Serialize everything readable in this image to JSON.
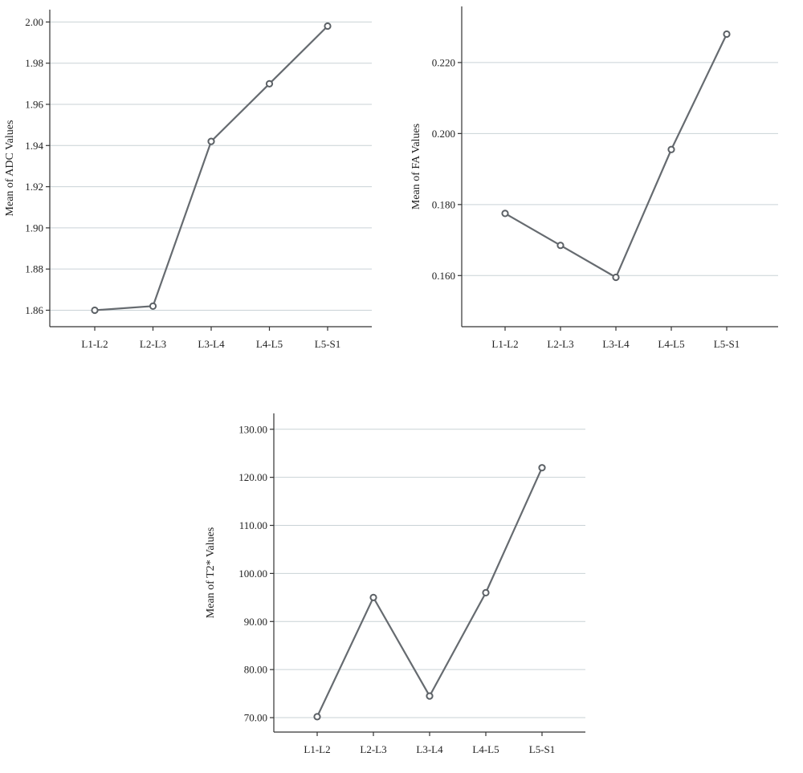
{
  "colors": {
    "line": "#666b70",
    "grid": "#c9d2d6",
    "axis": "#333333"
  },
  "chart_data": [
    {
      "type": "line",
      "categories": [
        "L1-L2",
        "L2-L3",
        "L3-L4",
        "L4-L5",
        "L5-S1"
      ],
      "values": [
        1.86,
        1.862,
        1.942,
        1.97,
        1.998
      ],
      "ylabel": "Mean of ADC Values",
      "xlabel": "",
      "ylim": [
        1.852,
        2.006
      ],
      "yticks": [
        1.86,
        1.88,
        1.9,
        1.92,
        1.94,
        1.96,
        1.98,
        2.0
      ],
      "ytick_labels": [
        "1.86",
        "1.88",
        "1.90",
        "1.92",
        "1.94",
        "1.96",
        "1.98",
        "2.00"
      ],
      "grid": true
    },
    {
      "type": "line",
      "categories": [
        "L1-L2",
        "L2-L3",
        "L3-L4",
        "L4-L5",
        "L5-S1"
      ],
      "values": [
        0.1775,
        0.1685,
        0.1595,
        0.1955,
        0.228
      ],
      "ylabel": "Mean of FA Values",
      "xlabel": "",
      "ylim": [
        0.1456,
        0.2358
      ],
      "yticks": [
        0.16,
        0.18,
        0.2,
        0.22
      ],
      "ytick_labels": [
        "0.160",
        "0.180",
        "0.200",
        "0.220"
      ],
      "grid": true
    },
    {
      "type": "line",
      "categories": [
        "L1-L2",
        "L2-L3",
        "L3-L4",
        "L4-L5",
        "L5-S1"
      ],
      "values": [
        70.2,
        95.0,
        74.5,
        96.0,
        122.0
      ],
      "ylabel": "Mean of T2* Values",
      "xlabel": "",
      "ylim": [
        67.0,
        133.3
      ],
      "yticks": [
        70,
        80,
        90,
        100,
        110,
        120,
        130
      ],
      "ytick_labels": [
        "70.00",
        "80.00",
        "90.00",
        "100.00",
        "110.00",
        "120.00",
        "130.00"
      ],
      "grid": true
    }
  ]
}
